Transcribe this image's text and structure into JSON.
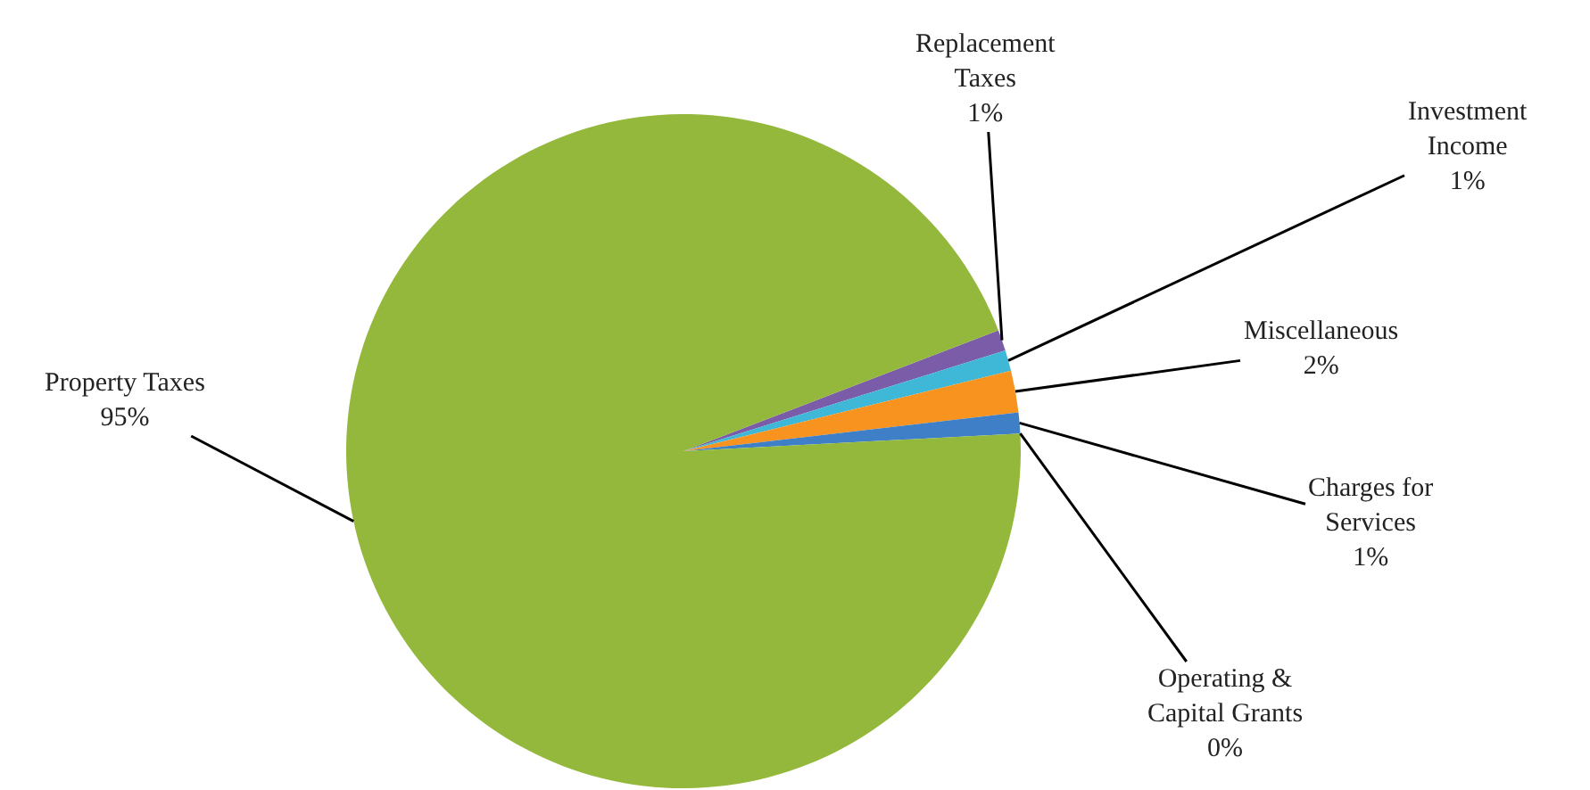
{
  "chart_data": {
    "type": "pie",
    "categories": [
      "Replacement Taxes",
      "Investment Income",
      "Miscellaneous",
      "Charges for Services",
      "Operating & Capital Grants",
      "Property Taxes"
    ],
    "values": [
      1,
      1,
      2,
      1,
      0,
      95
    ],
    "value_labels": [
      "1%",
      "1%",
      "2%",
      "1%",
      "0%",
      "95%"
    ],
    "colors": [
      "#7b5ca8",
      "#3fb8d8",
      "#f7931e",
      "#3f7fc8",
      "#c0504d",
      "#94b83c"
    ],
    "legend": false
  }
}
